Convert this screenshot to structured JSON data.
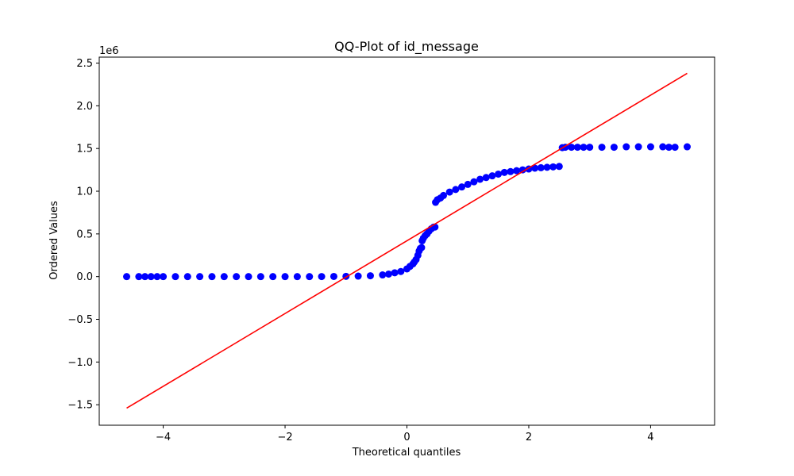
{
  "chart_data": {
    "type": "scatter",
    "title": "QQ-Plot of id_message",
    "xlabel": "Theoretical quantiles",
    "ylabel": "Ordered Values",
    "y_offset_label": "1e6",
    "xlim": [
      -5.05,
      5.05
    ],
    "ylim": [
      -1.74,
      2.57
    ],
    "x_ticks": [
      -4,
      -2,
      0,
      2,
      4
    ],
    "x_tick_labels": [
      "−4",
      "−2",
      "0",
      "2",
      "4"
    ],
    "y_ticks": [
      -1.5,
      -1.0,
      -0.5,
      0.0,
      0.5,
      1.0,
      1.5,
      2.0,
      2.5
    ],
    "y_tick_labels": [
      "−1.5",
      "−1.0",
      "−0.5",
      "0.0",
      "0.5",
      "1.0",
      "1.5",
      "2.0",
      "2.5"
    ],
    "grid": false,
    "series": [
      {
        "kind": "points",
        "color": "#0000ff",
        "x": [
          -4.6,
          -4.4,
          -4.3,
          -4.2,
          -4.1,
          -4.0,
          -3.8,
          -3.6,
          -3.4,
          -3.2,
          -3.0,
          -2.8,
          -2.6,
          -2.4,
          -2.2,
          -2.0,
          -1.8,
          -1.6,
          -1.4,
          -1.2,
          -1.0,
          -0.8,
          -0.6,
          -0.4,
          -0.3,
          -0.2,
          -0.1,
          0.0,
          0.05,
          0.1,
          0.12,
          0.15,
          0.18,
          0.2,
          0.22,
          0.24,
          0.25,
          0.27,
          0.3,
          0.33,
          0.36,
          0.4,
          0.44,
          0.46,
          0.47,
          0.5,
          0.55,
          0.6,
          0.7,
          0.8,
          0.9,
          1.0,
          1.1,
          1.2,
          1.3,
          1.4,
          1.5,
          1.6,
          1.7,
          1.8,
          1.9,
          2.0,
          2.1,
          2.2,
          2.3,
          2.4,
          2.5,
          2.55,
          2.6,
          2.7,
          2.8,
          2.9,
          3.0,
          3.2,
          3.4,
          3.6,
          3.8,
          4.0,
          4.2,
          4.3,
          4.4,
          4.6
        ],
        "y": [
          0.0,
          0.0,
          0.0,
          0.0,
          0.0,
          0.0,
          0.0,
          0.0,
          0.0,
          0.0,
          0.0,
          0.0,
          0.0,
          0.0,
          0.0,
          0.0,
          0.0,
          0.0,
          0.001,
          0.002,
          0.003,
          0.006,
          0.01,
          0.02,
          0.03,
          0.045,
          0.06,
          0.09,
          0.12,
          0.15,
          0.17,
          0.2,
          0.25,
          0.3,
          0.33,
          0.34,
          0.42,
          0.45,
          0.48,
          0.5,
          0.53,
          0.56,
          0.58,
          0.58,
          0.87,
          0.9,
          0.92,
          0.95,
          0.99,
          1.02,
          1.05,
          1.08,
          1.11,
          1.14,
          1.16,
          1.18,
          1.2,
          1.22,
          1.23,
          1.24,
          1.25,
          1.26,
          1.27,
          1.275,
          1.28,
          1.285,
          1.29,
          1.51,
          1.515,
          1.515,
          1.515,
          1.515,
          1.515,
          1.515,
          1.515,
          1.52,
          1.52,
          1.52,
          1.52,
          1.515,
          1.515,
          1.52
        ]
      },
      {
        "kind": "line",
        "color": "#ff0000",
        "x": [
          -4.6,
          4.6
        ],
        "y": [
          -1.54,
          2.38
        ]
      }
    ]
  }
}
